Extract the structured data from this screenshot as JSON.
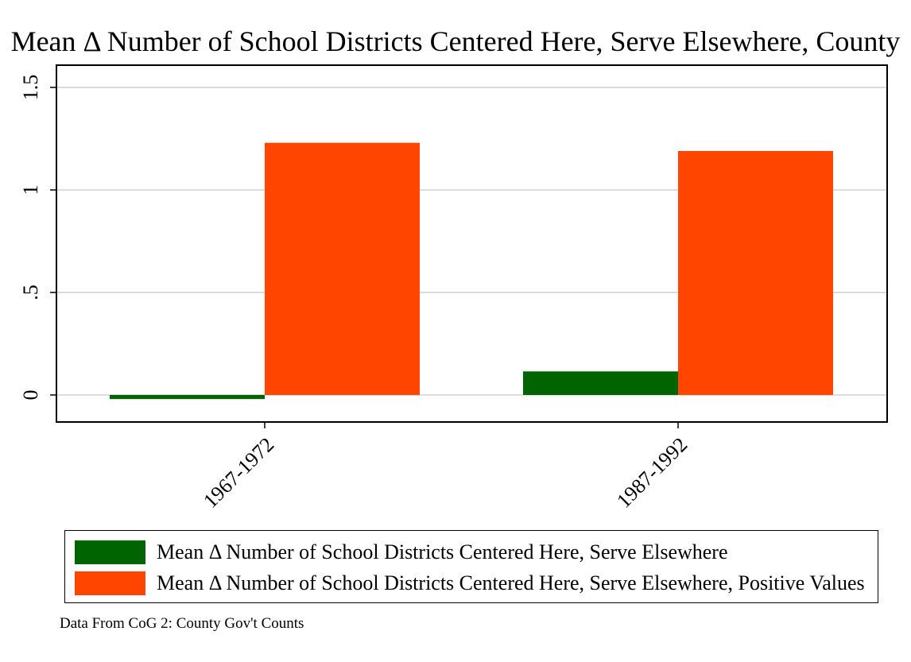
{
  "chart_data": {
    "type": "bar",
    "title": "Mean Δ Number of School Districts Centered Here, Serve Elsewhere, County",
    "categories": [
      "1967-1972",
      "1987-1992"
    ],
    "series": [
      {
        "name": "Mean Δ Number of School Districts Centered Here, Serve Elsewhere",
        "color": "#006400",
        "values": [
          -0.02,
          0.115
        ]
      },
      {
        "name": "Mean Δ Number of School Districts Centered Here, Serve Elsewhere, Positive Values",
        "color": "#FF4500",
        "values": [
          1.23,
          1.19
        ]
      }
    ],
    "ylim": [
      -0.13,
      1.6
    ],
    "yticks": [
      0,
      0.5,
      1,
      1.5
    ],
    "ytick_labels": [
      "0",
      ".5",
      "1",
      "1.5"
    ],
    "xlabel": "",
    "ylabel": "",
    "grid": true,
    "legend_position": "bottom",
    "note": "Data From CoG 2: County Gov't Counts"
  }
}
